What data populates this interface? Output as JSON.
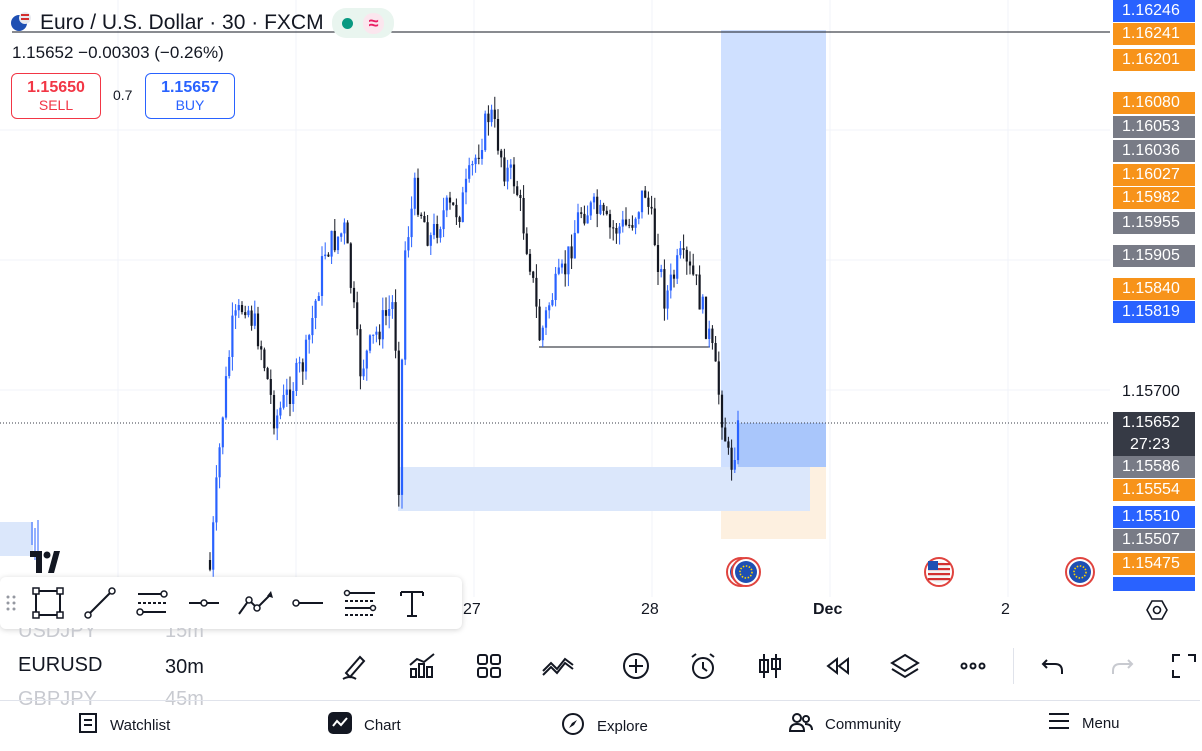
{
  "header": {
    "symbol_title": "Euro / U.S. Dollar · 30 · FXCM",
    "ohlc_line": "1.15652  −0.00303 (−0.26%)"
  },
  "trade": {
    "sell_price": "1.15650",
    "sell_label": "SELL",
    "spread": "0.7",
    "buy_price": "1.15657",
    "buy_label": "BUY"
  },
  "price_labels": [
    {
      "text": "1.16246",
      "color": "#2962ff"
    },
    {
      "text": "1.16241",
      "color": "#f7931a"
    },
    {
      "text": "1.16201",
      "color": "#f7931a"
    },
    {
      "text": "1.16080",
      "color": "#f7931a"
    },
    {
      "text": "1.16053",
      "color": "#787b86"
    },
    {
      "text": "1.16036",
      "color": "#787b86"
    },
    {
      "text": "1.16027",
      "color": "#f7931a"
    },
    {
      "text": "1.15982",
      "color": "#f7931a"
    },
    {
      "text": "1.15955",
      "color": "#787b86"
    },
    {
      "text": "1.15905",
      "color": "#787b86"
    },
    {
      "text": "1.15840",
      "color": "#f7931a"
    },
    {
      "text": "1.15819",
      "color": "#2962ff"
    },
    {
      "text": "1.15700",
      "color": "none"
    },
    {
      "text": "1.15652",
      "color": "#363a45"
    },
    {
      "text": "1.15586",
      "color": "#787b86"
    },
    {
      "text": "1.15554",
      "color": "#f7931a"
    },
    {
      "text": "1.15510",
      "color": "#2962ff"
    },
    {
      "text": "1.15507",
      "color": "#787b86"
    },
    {
      "text": "1.15475",
      "color": "#f7931a"
    }
  ],
  "countdown": "27:23",
  "time_labels": [
    "27",
    "28",
    "Dec",
    "2"
  ],
  "symbols": {
    "prev": "USDJPY",
    "current": "EURUSD",
    "next": "GBPJPY",
    "prev_interval": "15m",
    "current_interval": "30m",
    "next_interval": "45m"
  },
  "drawing_tools": [
    "rectangle-tool-icon",
    "trend-line-icon",
    "fib-retracement-icon",
    "horizontal-ray-icon",
    "path-icon",
    "horizontal-line-icon",
    "gann-fan-icon",
    "text-tool-icon"
  ],
  "nav": {
    "watchlist": "Watchlist",
    "chart": "Chart",
    "explore": "Explore",
    "community": "Community",
    "menu": "Menu"
  },
  "colors": {
    "up_candle": "#2962ff",
    "down_candle": "#131722",
    "accent_blue": "#2962ff",
    "orange": "#f7931a",
    "sell_red": "#f23645"
  }
}
